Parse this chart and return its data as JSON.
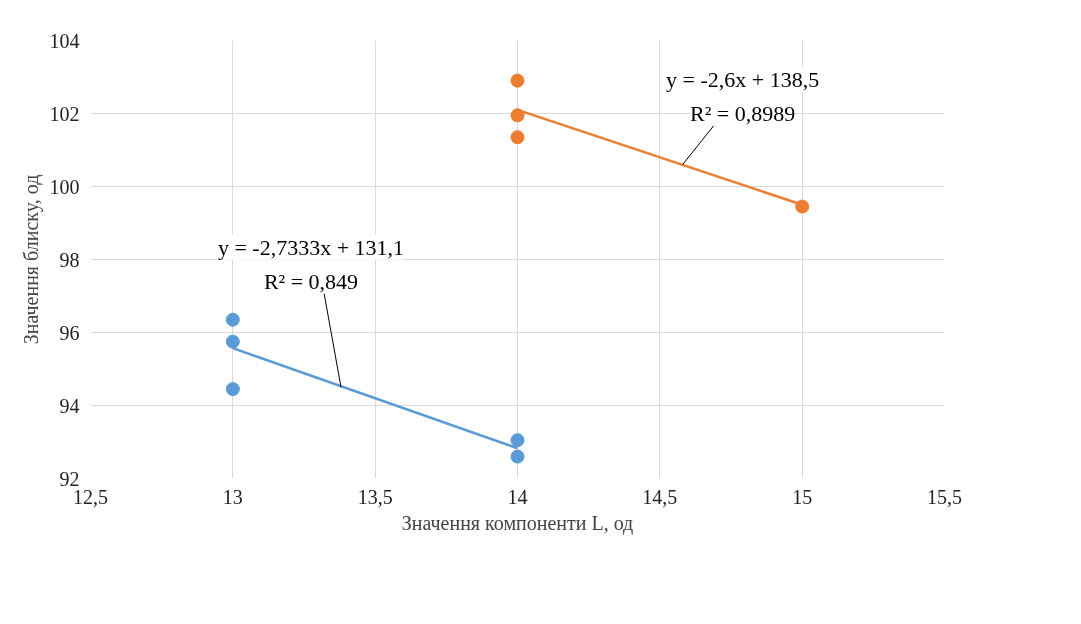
{
  "chart_data": {
    "type": "scatter",
    "xlabel": "Значення компоненти L, од",
    "ylabel": "Значення блиску, од",
    "series": [
      {
        "color": "#5b9bd5",
        "x": [
          13,
          13,
          13,
          14,
          14
        ],
        "values": [
          96.35,
          95.75,
          94.45,
          93.05,
          92.6
        ]
      },
      {
        "color": "#ed7d31",
        "x": [
          14,
          14,
          14,
          15
        ],
        "values": [
          102.9,
          101.95,
          101.35,
          99.45
        ]
      },
      {
        "type": "line",
        "marker": "none",
        "color": "#5b9bd5",
        "x": [
          13,
          14
        ],
        "values": [
          95.57,
          92.83
        ]
      },
      {
        "type": "line",
        "marker": "none",
        "color": "#ed7d31",
        "x": [
          14,
          15
        ],
        "values": [
          102.1,
          99.5
        ]
      }
    ],
    "annotations": [
      {
        "text": "y = -2,7333x + 131,1\nR² = 0,849",
        "x": 13.38,
        "y": 94.5
      },
      {
        "text": "y = -2,6x + 138,5\nR² = 0,8989",
        "x": 14.58,
        "y": 100.6
      }
    ],
    "xlim": [
      12.5,
      15.5
    ],
    "xticks": [
      {
        "value": 12.5,
        "label": "12,5"
      },
      13,
      {
        "value": 13.5,
        "label": "13,5"
      },
      14,
      {
        "value": 14.5,
        "label": "14,5"
      },
      15,
      {
        "value": 15.5,
        "label": "15,5"
      }
    ],
    "ylim": [
      92,
      104
    ],
    "yticks": [
      92,
      94,
      96,
      98,
      100,
      102,
      104
    ],
    "grid": true,
    "marker": "circle",
    "line_style": "solid"
  }
}
